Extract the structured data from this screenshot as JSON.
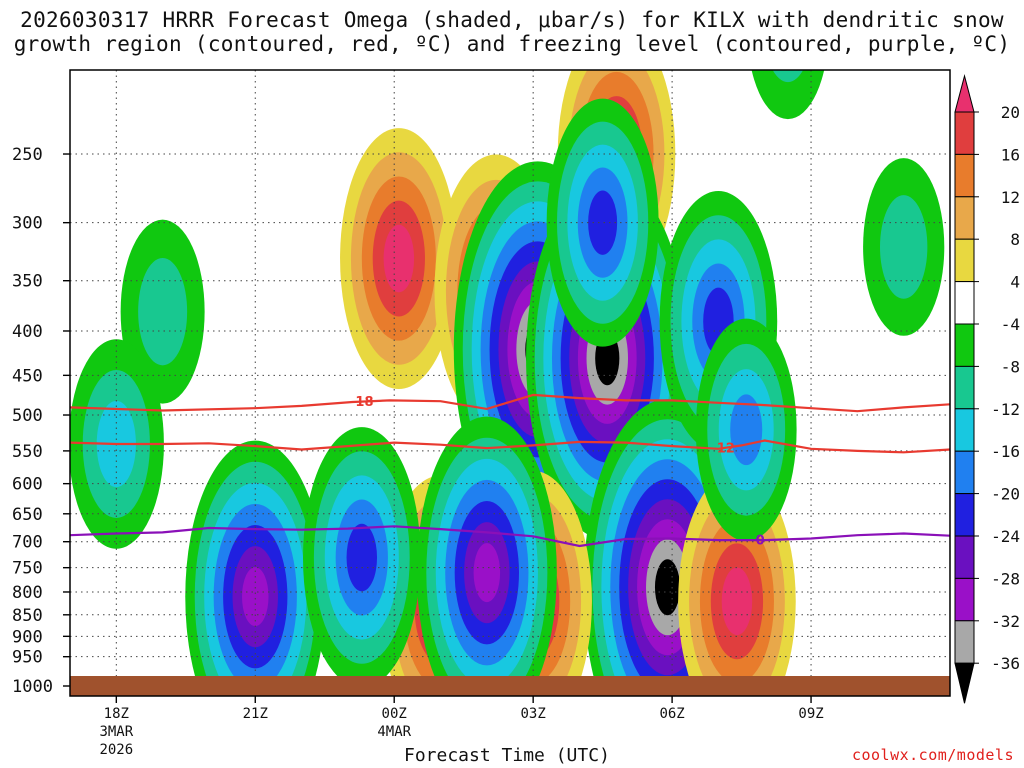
{
  "title_line1": "2026030317 HRRR Forecast Omega (shaded, μbar/s) for KILX with dendritic snow",
  "title_line2": "growth region (contoured, red, ºC) and freezing level (contoured, purple, ºC)",
  "credit": "coolwx.com/models",
  "chart_data": {
    "type": "heatmap",
    "title": "2026030317 HRRR Forecast Omega (shaded, μbar/s) for KILX with dendritic snow growth region (contoured, red, ºC) and freezing level (contoured, purple, ºC)",
    "xlabel": "Forecast Time (UTC)",
    "ylabel": "",
    "y_axis": {
      "scale": "pressure (log)",
      "ticks": [
        250,
        300,
        350,
        400,
        450,
        500,
        550,
        600,
        650,
        700,
        750,
        800,
        850,
        900,
        950,
        1000
      ],
      "ylim": [
        1000,
        200
      ]
    },
    "x_axis": {
      "ticks": [
        {
          "hour": 18,
          "label": "18Z",
          "sub1": "3MAR",
          "sub2": "2026"
        },
        {
          "hour": 21,
          "label": "21Z",
          "sub1": "",
          "sub2": ""
        },
        {
          "hour": 24,
          "label": "00Z",
          "sub1": "4MAR",
          "sub2": ""
        },
        {
          "hour": 27,
          "label": "03Z",
          "sub1": "",
          "sub2": ""
        },
        {
          "hour": 30,
          "label": "06Z",
          "sub1": "",
          "sub2": ""
        },
        {
          "hour": 33,
          "label": "09Z",
          "sub1": "",
          "sub2": ""
        }
      ],
      "xlim": [
        17,
        36
      ]
    },
    "grid": true,
    "colorbar": {
      "labels": [
        "20",
        "16",
        "12",
        "8",
        "4",
        "-4",
        "-8",
        "-12",
        "-16",
        "-20",
        "-24",
        "-28",
        "-32",
        "-36"
      ],
      "levels": [
        20,
        16,
        12,
        8,
        4,
        -4,
        -8,
        -12,
        -16,
        -20,
        -24,
        -28,
        -32,
        -36
      ],
      "colors": [
        "#e8306e",
        "#e03e3e",
        "#e87c2c",
        "#e8a84a",
        "#e8d840",
        "#ffffff",
        "#10c810",
        "#18c890",
        "#18c8e0",
        "#2080f0",
        "#2020e0",
        "#6a10c0",
        "#9a10c8",
        "#a8a8a8",
        "#000000"
      ],
      "arrows": true
    },
    "omega_features": [
      {
        "hour": 24.1,
        "p": 330,
        "value": 22
      },
      {
        "hour": 26.2,
        "p": 360,
        "value": 24
      },
      {
        "hour": 28.8,
        "p": 250,
        "value": 22
      },
      {
        "hour": 27.1,
        "p": 420,
        "value": -40
      },
      {
        "hour": 28.6,
        "p": 430,
        "value": -38
      },
      {
        "hour": 29.9,
        "p": 790,
        "value": -40
      },
      {
        "hour": 25.0,
        "p": 830,
        "value": 22
      },
      {
        "hour": 27.0,
        "p": 820,
        "value": 22
      },
      {
        "hour": 31.4,
        "p": 820,
        "value": 22
      },
      {
        "hour": 21.0,
        "p": 810,
        "value": -30
      },
      {
        "hour": 26.0,
        "p": 760,
        "value": -30
      },
      {
        "hour": 23.3,
        "p": 730,
        "value": -22
      },
      {
        "hour": 28.5,
        "p": 300,
        "value": -20
      },
      {
        "hour": 31.0,
        "p": 390,
        "value": -22
      },
      {
        "hour": 31.6,
        "p": 520,
        "value": -16
      },
      {
        "hour": 19.0,
        "p": 380,
        "value": -10
      },
      {
        "hour": 18.0,
        "p": 540,
        "value": -14
      },
      {
        "hour": 35.0,
        "p": 320,
        "value": -9
      },
      {
        "hour": 32.5,
        "p": 180,
        "value": -9
      }
    ],
    "dendritic_contours": [
      {
        "label": "-18",
        "label_hour": 23.3,
        "points": [
          [
            17,
            490
          ],
          [
            19,
            494
          ],
          [
            21,
            491
          ],
          [
            22,
            488
          ],
          [
            23.1,
            483
          ],
          [
            23.9,
            481
          ],
          [
            25,
            482
          ],
          [
            26,
            492
          ],
          [
            27,
            474
          ],
          [
            28,
            478
          ],
          [
            29,
            481
          ],
          [
            30,
            481
          ],
          [
            31,
            484
          ],
          [
            32,
            487
          ],
          [
            33,
            491
          ],
          [
            34,
            495
          ],
          [
            35,
            490
          ],
          [
            36,
            486
          ]
        ]
      },
      {
        "label": "-12",
        "label_hour": 31.1,
        "points": [
          [
            17,
            538
          ],
          [
            18,
            540
          ],
          [
            19,
            540
          ],
          [
            20,
            539
          ],
          [
            21,
            543
          ],
          [
            22,
            548
          ],
          [
            23,
            543
          ],
          [
            24,
            538
          ],
          [
            25,
            541
          ],
          [
            26,
            546
          ],
          [
            27,
            542
          ],
          [
            28,
            537
          ],
          [
            29,
            538
          ],
          [
            30,
            543
          ],
          [
            31,
            547
          ],
          [
            31.5,
            542
          ],
          [
            32,
            535
          ],
          [
            33,
            547
          ],
          [
            34,
            550
          ],
          [
            35,
            552
          ],
          [
            36,
            548
          ]
        ]
      }
    ],
    "freezing_level": {
      "label": "0",
      "label_hour": 31.9,
      "points": [
        [
          17,
          688
        ],
        [
          18,
          685
        ],
        [
          19,
          683
        ],
        [
          20,
          675
        ],
        [
          21,
          677
        ],
        [
          22,
          678
        ],
        [
          23,
          676
        ],
        [
          24,
          672
        ],
        [
          25,
          677
        ],
        [
          26,
          683
        ],
        [
          27,
          690
        ],
        [
          28,
          708
        ],
        [
          29,
          695
        ],
        [
          30,
          694
        ],
        [
          31,
          697
        ],
        [
          32,
          697
        ],
        [
          33,
          694
        ],
        [
          34,
          688
        ],
        [
          35,
          685
        ],
        [
          36,
          689
        ]
      ]
    }
  },
  "colors": {
    "dendritic": "#e83a30",
    "freezing": "#8a10b8",
    "ground": "#a0522d",
    "credit": "#e0201c"
  }
}
